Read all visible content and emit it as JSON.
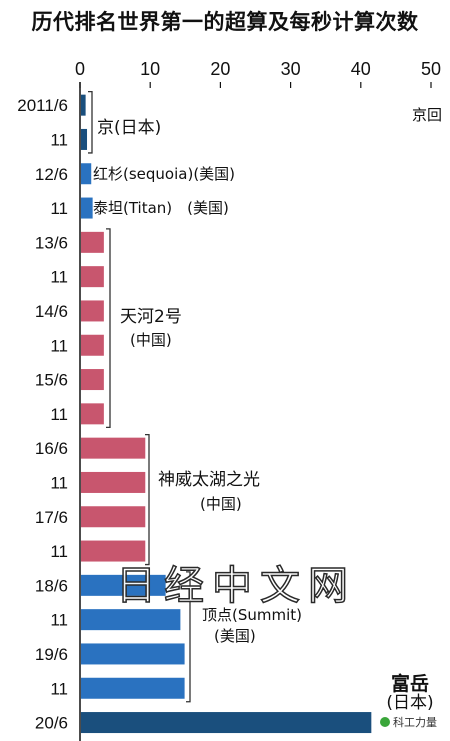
{
  "title": "历代排名世界第一的超算及每秒计算次数",
  "watermark": "日经中文网",
  "source": "科工力量",
  "colors": {
    "japan": "#1a4f7d",
    "us": "#2a72c0",
    "china": "#c8566e",
    "axis": "#111111"
  },
  "chart_data": {
    "type": "bar",
    "orientation": "horizontal",
    "title": "历代排名世界第一的超算及每秒计算次数",
    "xlim": [
      0,
      50
    ],
    "xticks": [
      0,
      10,
      20,
      30,
      40,
      50
    ],
    "grid": false,
    "categories": [
      "2011/6",
      "11",
      "12/6",
      "11",
      "13/6",
      "11",
      "14/6",
      "11",
      "15/6",
      "11",
      "16/6",
      "11",
      "17/6",
      "11",
      "18/6",
      "11",
      "19/6",
      "11",
      "20/6"
    ],
    "values": [
      0.8,
      1.0,
      1.6,
      1.8,
      3.4,
      3.4,
      3.4,
      3.4,
      3.4,
      3.4,
      9.3,
      9.3,
      9.3,
      9.3,
      12.2,
      14.3,
      14.9,
      14.9,
      41.5
    ],
    "bar_colors": [
      "#1a4f7d",
      "#1a4f7d",
      "#2a72c0",
      "#2a72c0",
      "#c8566e",
      "#c8566e",
      "#c8566e",
      "#c8566e",
      "#c8566e",
      "#c8566e",
      "#c8566e",
      "#c8566e",
      "#c8566e",
      "#c8566e",
      "#2a72c0",
      "#2a72c0",
      "#2a72c0",
      "#2a72c0",
      "#1a4f7d"
    ],
    "annotations": [
      {
        "lines": [
          "京(日本)"
        ],
        "first_row": 0,
        "last_row": 1,
        "style": "bold-first-char"
      },
      {
        "lines": [
          "红杉(sequoia)(美国)"
        ],
        "row": 2
      },
      {
        "lines": [
          "泰坦(Titan)　(美国)"
        ],
        "row": 3
      },
      {
        "lines": [
          "天河2号",
          "(中国)"
        ],
        "first_row": 4,
        "last_row": 9
      },
      {
        "lines": [
          "神威太湖之光",
          "(中国)"
        ],
        "first_row": 10,
        "last_row": 13
      },
      {
        "lines": [
          "顶点(Summit)",
          "(美国)"
        ],
        "first_row": 14,
        "last_row": 17
      },
      {
        "lines": [
          "富岳",
          "(日本)"
        ],
        "row": 18,
        "style": "bold-first-line"
      }
    ],
    "corner_label": "京回"
  }
}
